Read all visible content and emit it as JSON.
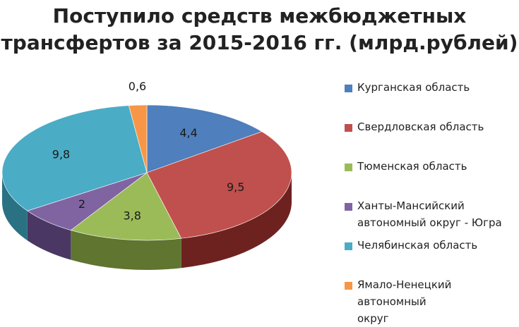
{
  "chart_data": {
    "type": "pie",
    "title": "Поступило средств межбюджетных трансфертов за 2015-2016 гг. (млрд.рублей)",
    "title_lines": [
      "Поступило средств межбюджетных",
      "трансфертов за 2015-2016 гг. (млрд.рублей)"
    ],
    "style": "3d",
    "legend_position": "right",
    "slices": [
      {
        "name": "Курганская область",
        "value": 4.4,
        "label": "4,4",
        "color": "#4f7fbc",
        "side_color": "#2e4f7a"
      },
      {
        "name": "Свердловская область",
        "value": 9.5,
        "label": "9,5",
        "color": "#c0504d",
        "side_color": "#6e2220"
      },
      {
        "name": "Тюменская область",
        "value": 3.8,
        "label": "3,8",
        "color": "#9bbb59",
        "side_color": "#5f7530"
      },
      {
        "name": "Ханты-Мансийский автономный округ - Югра",
        "value": 2,
        "label": "2",
        "color": "#8064a2",
        "side_color": "#4a3764"
      },
      {
        "name": "Челябинская область",
        "value": 9.8,
        "label": "9,8",
        "color": "#4bacc6",
        "side_color": "#2a7184"
      },
      {
        "name": "Ямало-Ненецкий автономный округ",
        "value": 0.6,
        "label": "0,6",
        "color": "#f79646",
        "side_color": "#b0601c"
      }
    ],
    "legend": [
      {
        "lines": [
          "Курганская область"
        ],
        "color": "#4f7fbc"
      },
      {
        "lines": [
          "Свердловская область"
        ],
        "color": "#c0504d"
      },
      {
        "lines": [
          "Тюменская область"
        ],
        "color": "#9bbb59"
      },
      {
        "lines": [
          "Ханты-Мансийский",
          "автономный округ - Югра"
        ],
        "color": "#8064a2"
      },
      {
        "lines": [
          "Челябинская область"
        ],
        "color": "#4bacc6"
      },
      {
        "lines": [
          "Ямало-Ненецкий автономный",
          "округ"
        ],
        "color": "#f79646"
      }
    ]
  }
}
